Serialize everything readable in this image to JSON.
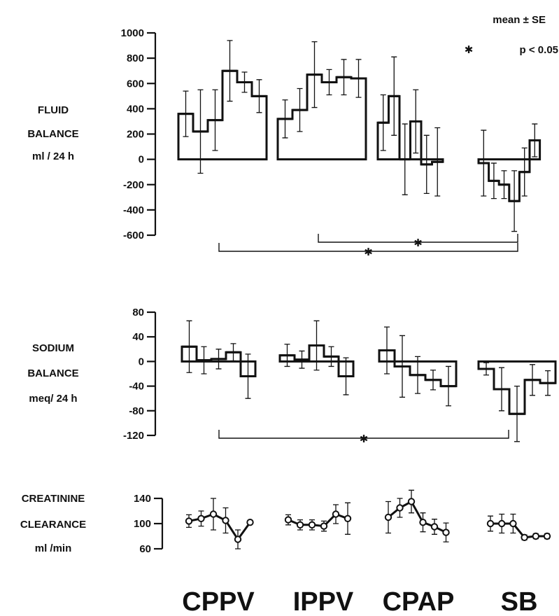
{
  "legend": {
    "mean_se": "mean ± SE",
    "sig": "p < 0.05",
    "sig_mark": "✱"
  },
  "chart_data": [
    {
      "type": "bar",
      "panel": "fluid",
      "ylabel": [
        "FLUID",
        "BALANCE",
        "ml / 24 h"
      ],
      "ylim": [
        -600,
        1000
      ],
      "ticks": [
        1000,
        800,
        600,
        400,
        200,
        0,
        -200,
        -400,
        -600
      ],
      "tick_labels": [
        "1000",
        "800",
        "600",
        "400",
        "200",
        "0",
        "-200",
        "-400",
        "-600"
      ],
      "series": [
        {
          "name": "CPPV",
          "values": [
            360,
            220,
            310,
            700,
            610,
            500
          ],
          "se": [
            180,
            330,
            240,
            240,
            80,
            130
          ]
        },
        {
          "name": "IPPV",
          "values": [
            320,
            390,
            670,
            610,
            650,
            640
          ],
          "se": [
            150,
            170,
            260,
            100,
            140,
            150
          ]
        },
        {
          "name": "CPAP",
          "values": [
            290,
            500,
            0,
            300,
            -40,
            -20
          ],
          "se": [
            220,
            310,
            280,
            250,
            230,
            270
          ]
        },
        {
          "name": "SB",
          "values": [
            -30,
            -170,
            -200,
            -330,
            -100,
            150
          ],
          "se": [
            260,
            140,
            110,
            240,
            190,
            130
          ]
        }
      ],
      "brackets": [
        {
          "from": "CPAP",
          "to": "SB"
        },
        {
          "from": "CPPV",
          "to": "SB"
        }
      ]
    },
    {
      "type": "bar",
      "panel": "sodium",
      "ylabel": [
        "SODIUM",
        "BALANCE",
        "meq/ 24 h"
      ],
      "ylim": [
        -120,
        80
      ],
      "ticks": [
        80,
        40,
        0,
        -40,
        -80,
        -120
      ],
      "tick_labels": [
        "80",
        "40",
        "0",
        "-40",
        "-80",
        "-120"
      ],
      "series": [
        {
          "name": "CPPV",
          "values": [
            24,
            2,
            4,
            15,
            -24
          ],
          "se": [
            42,
            22,
            16,
            14,
            36
          ]
        },
        {
          "name": "IPPV",
          "values": [
            10,
            3,
            26,
            8,
            -24
          ],
          "se": [
            18,
            14,
            40,
            16,
            30
          ]
        },
        {
          "name": "CPAP",
          "values": [
            18,
            -8,
            -22,
            -30,
            -40
          ],
          "se": [
            38,
            50,
            30,
            16,
            32
          ]
        },
        {
          "name": "SB",
          "values": [
            -12,
            -45,
            -85,
            -30,
            -35
          ],
          "se": [
            10,
            35,
            45,
            25,
            20
          ]
        }
      ],
      "brackets": [
        {
          "from": "CPPV",
          "to": "SB"
        }
      ]
    },
    {
      "type": "line",
      "panel": "creatinine",
      "ylabel": [
        "CREATININE",
        "CLEARANCE",
        "ml /min"
      ],
      "ylim": [
        60,
        140
      ],
      "ticks": [
        140,
        100,
        60
      ],
      "tick_labels": [
        "140",
        "100",
        "60"
      ],
      "series": [
        {
          "name": "CPPV",
          "values": [
            104,
            108,
            115,
            105,
            75,
            102
          ],
          "se": [
            10,
            12,
            25,
            20,
            15,
            0
          ]
        },
        {
          "name": "IPPV",
          "values": [
            106,
            98,
            98,
            96,
            115,
            108
          ],
          "se": [
            8,
            8,
            8,
            8,
            15,
            25
          ]
        },
        {
          "name": "CPAP",
          "values": [
            110,
            125,
            135,
            102,
            95,
            86
          ],
          "se": [
            25,
            15,
            18,
            15,
            12,
            15
          ]
        },
        {
          "name": "SB",
          "values": [
            100,
            100,
            100,
            78,
            80,
            80
          ],
          "se": [
            12,
            15,
            15,
            4,
            4,
            4
          ]
        }
      ]
    }
  ],
  "groups": [
    "CPPV",
    "IPPV",
    "CPAP",
    "SB"
  ]
}
